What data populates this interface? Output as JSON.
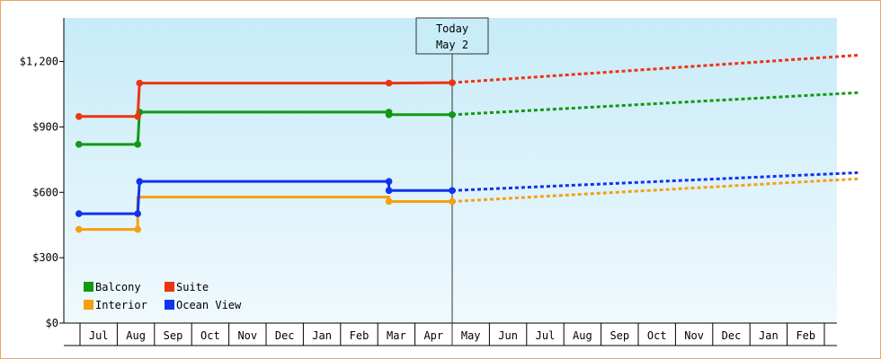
{
  "chart_data": {
    "type": "line",
    "title": "",
    "xlabel": "",
    "ylabel": "",
    "ylim": [
      0,
      1400
    ],
    "y_ticks": [
      {
        "value": 0,
        "label": "$0"
      },
      {
        "value": 300,
        "label": "$300"
      },
      {
        "value": 600,
        "label": "$600"
      },
      {
        "value": 900,
        "label": "$900"
      },
      {
        "value": 1200,
        "label": "$1,200"
      }
    ],
    "x_months": [
      "",
      "Jul",
      "Aug",
      "Sep",
      "Oct",
      "Nov",
      "Dec",
      "Jan",
      "Feb",
      "Mar",
      "Apr",
      "May",
      "Jun",
      "Jul",
      "Aug",
      "Sep",
      "Oct",
      "Nov",
      "Dec",
      "Jan",
      "Feb",
      ""
    ],
    "today": {
      "line1": "Today",
      "line2": "May 2",
      "x": 10.0
    },
    "x_range": [
      -0.05,
      20.9
    ],
    "grid": false,
    "legend_placement": "bottom-left",
    "series": [
      {
        "name": "Balcony",
        "color": "#119911",
        "values": [
          [
            -0.03,
            820
          ],
          [
            1.55,
            820
          ],
          [
            1.6,
            968
          ],
          [
            8.3,
            968
          ],
          [
            8.3,
            956
          ],
          [
            10.0,
            956
          ]
        ],
        "markers": [
          [
            -0.03,
            820
          ],
          [
            1.55,
            820
          ],
          [
            1.6,
            968
          ],
          [
            8.3,
            968
          ],
          [
            8.3,
            956
          ],
          [
            10.0,
            956
          ]
        ],
        "forecast": [
          [
            10.0,
            956
          ],
          [
            20.9,
            1057
          ]
        ]
      },
      {
        "name": "Suite",
        "color": "#ee3311",
        "values": [
          [
            -0.03,
            948
          ],
          [
            1.55,
            948
          ],
          [
            1.6,
            1101
          ],
          [
            8.3,
            1101
          ],
          [
            10.0,
            1103
          ]
        ],
        "markers": [
          [
            -0.03,
            948
          ],
          [
            1.55,
            948
          ],
          [
            1.6,
            1101
          ],
          [
            8.3,
            1101
          ],
          [
            10.0,
            1103
          ]
        ],
        "forecast": [
          [
            10.0,
            1103
          ],
          [
            20.9,
            1229
          ]
        ]
      },
      {
        "name": "Interior",
        "color": "#f5a011",
        "values": [
          [
            -0.03,
            430
          ],
          [
            1.55,
            430
          ],
          [
            1.55,
            578
          ],
          [
            8.3,
            578
          ],
          [
            8.3,
            558
          ],
          [
            10.0,
            558
          ]
        ],
        "markers": [
          [
            -0.03,
            430
          ],
          [
            1.55,
            430
          ],
          [
            8.3,
            558
          ],
          [
            10.0,
            558
          ]
        ],
        "forecast": [
          [
            10.0,
            558
          ],
          [
            20.9,
            662
          ]
        ]
      },
      {
        "name": "Ocean View",
        "color": "#1133ee",
        "values": [
          [
            -0.03,
            502
          ],
          [
            1.55,
            502
          ],
          [
            1.6,
            650
          ],
          [
            8.3,
            650
          ],
          [
            8.3,
            608
          ],
          [
            10.0,
            608
          ]
        ],
        "markers": [
          [
            -0.03,
            502
          ],
          [
            1.55,
            502
          ],
          [
            1.6,
            650
          ],
          [
            8.3,
            650
          ],
          [
            8.3,
            608
          ],
          [
            10.0,
            608
          ]
        ],
        "forecast": [
          [
            10.0,
            608
          ],
          [
            20.9,
            690
          ]
        ]
      }
    ],
    "legend": [
      {
        "name": "Balcony",
        "color": "#119911"
      },
      {
        "name": "Suite",
        "color": "#ee3311"
      },
      {
        "name": "Interior",
        "color": "#f5a011"
      },
      {
        "name": "Ocean View",
        "color": "#1133ee"
      }
    ]
  }
}
